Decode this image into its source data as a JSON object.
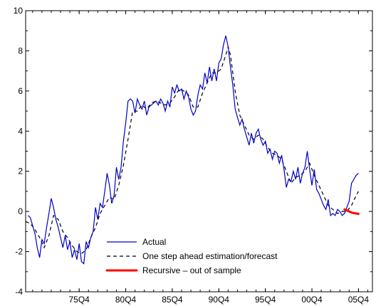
{
  "chart_data": {
    "type": "line",
    "title": "",
    "xlabel": "",
    "ylabel": "",
    "ylim": [
      -4,
      10
    ],
    "xlim": [
      1970.0,
      2007.25
    ],
    "yticks": [
      -4,
      -2,
      0,
      2,
      4,
      6,
      8,
      10
    ],
    "xticks": [
      {
        "label": "75Q4",
        "value": 1975.75
      },
      {
        "label": "80Q4",
        "value": 1980.75
      },
      {
        "label": "85Q4",
        "value": 1985.75
      },
      {
        "label": "90Q4",
        "value": 1990.75
      },
      {
        "label": "95Q4",
        "value": 1995.75
      },
      {
        "label": "00Q4",
        "value": 2000.75
      },
      {
        "label": "05Q4",
        "value": 2005.75
      }
    ],
    "grid": false,
    "legend_position": "bottom-center",
    "series": [
      {
        "name": "Actual",
        "style": "solid",
        "color": "#0000cc",
        "points": [
          [
            1970.25,
            -0.2
          ],
          [
            1970.5,
            -0.3
          ],
          [
            1970.75,
            -0.7
          ],
          [
            1971.0,
            -1.1
          ],
          [
            1971.25,
            -1.8
          ],
          [
            1971.5,
            -2.3
          ],
          [
            1971.75,
            -1.4
          ],
          [
            1972.0,
            -1.6
          ],
          [
            1972.25,
            -0.8
          ],
          [
            1972.5,
            -0.1
          ],
          [
            1972.75,
            0.65
          ],
          [
            1973.0,
            0.2
          ],
          [
            1973.25,
            -0.4
          ],
          [
            1973.5,
            -0.8
          ],
          [
            1973.75,
            -1.3
          ],
          [
            1974.0,
            -1.8
          ],
          [
            1974.25,
            -1.2
          ],
          [
            1974.5,
            -1.9
          ],
          [
            1974.75,
            -1.5
          ],
          [
            1975.0,
            -2.3
          ],
          [
            1975.25,
            -1.9
          ],
          [
            1975.5,
            -2.4
          ],
          [
            1975.75,
            -1.6
          ],
          [
            1976.0,
            -2.5
          ],
          [
            1976.25,
            -2.6
          ],
          [
            1976.5,
            -1.5
          ],
          [
            1976.75,
            -1.8
          ],
          [
            1977.0,
            -1.3
          ],
          [
            1977.25,
            -1.0
          ],
          [
            1977.5,
            0.2
          ],
          [
            1977.75,
            -0.4
          ],
          [
            1978.0,
            0.4
          ],
          [
            1978.25,
            0.2
          ],
          [
            1978.5,
            1.0
          ],
          [
            1978.75,
            1.9
          ],
          [
            1979.0,
            1.3
          ],
          [
            1979.25,
            0.4
          ],
          [
            1979.5,
            0.8
          ],
          [
            1979.75,
            2.2
          ],
          [
            1980.0,
            1.6
          ],
          [
            1980.25,
            2.2
          ],
          [
            1980.5,
            3.5
          ],
          [
            1980.75,
            4.4
          ],
          [
            1981.0,
            5.5
          ],
          [
            1981.25,
            5.6
          ],
          [
            1981.5,
            5.5
          ],
          [
            1981.75,
            4.9
          ],
          [
            1982.0,
            5.6
          ],
          [
            1982.25,
            5.3
          ],
          [
            1982.5,
            5.1
          ],
          [
            1982.75,
            5.5
          ],
          [
            1983.0,
            4.8
          ],
          [
            1983.25,
            5.2
          ],
          [
            1983.5,
            5.3
          ],
          [
            1983.75,
            5.4
          ],
          [
            1984.0,
            5.5
          ],
          [
            1984.25,
            5.3
          ],
          [
            1984.5,
            5.6
          ],
          [
            1984.75,
            5.4
          ],
          [
            1985.0,
            5.0
          ],
          [
            1985.25,
            5.5
          ],
          [
            1985.5,
            5.2
          ],
          [
            1985.75,
            6.2
          ],
          [
            1986.0,
            5.9
          ],
          [
            1986.25,
            6.3
          ],
          [
            1986.5,
            6.0
          ],
          [
            1986.75,
            6.1
          ],
          [
            1987.0,
            5.6
          ],
          [
            1987.25,
            6.0
          ],
          [
            1987.5,
            5.7
          ],
          [
            1987.75,
            5.1
          ],
          [
            1988.0,
            4.8
          ],
          [
            1988.25,
            5.0
          ],
          [
            1988.5,
            5.8
          ],
          [
            1988.75,
            6.3
          ],
          [
            1989.0,
            6.1
          ],
          [
            1989.25,
            6.9
          ],
          [
            1989.5,
            6.4
          ],
          [
            1989.75,
            7.2
          ],
          [
            1990.0,
            6.5
          ],
          [
            1990.25,
            7.1
          ],
          [
            1990.5,
            6.5
          ],
          [
            1990.75,
            7.4
          ],
          [
            1991.0,
            7.6
          ],
          [
            1991.25,
            8.3
          ],
          [
            1991.5,
            8.75
          ],
          [
            1991.75,
            8.2
          ],
          [
            1992.0,
            7.2
          ],
          [
            1992.25,
            6.3
          ],
          [
            1992.5,
            5.1
          ],
          [
            1992.75,
            4.7
          ],
          [
            1993.0,
            4.3
          ],
          [
            1993.25,
            4.6
          ],
          [
            1993.5,
            4.1
          ],
          [
            1993.75,
            3.7
          ],
          [
            1994.0,
            3.3
          ],
          [
            1994.25,
            3.9
          ],
          [
            1994.5,
            3.4
          ],
          [
            1994.75,
            3.9
          ],
          [
            1995.0,
            4.1
          ],
          [
            1995.25,
            3.6
          ],
          [
            1995.5,
            3.3
          ],
          [
            1995.75,
            3.5
          ],
          [
            1996.0,
            2.9
          ],
          [
            1996.25,
            3.1
          ],
          [
            1996.5,
            2.6
          ],
          [
            1996.75,
            3.0
          ],
          [
            1997.0,
            2.9
          ],
          [
            1997.25,
            2.4
          ],
          [
            1997.5,
            2.8
          ],
          [
            1997.75,
            2.1
          ],
          [
            1998.0,
            1.2
          ],
          [
            1998.25,
            1.6
          ],
          [
            1998.5,
            1.5
          ],
          [
            1998.75,
            2.0
          ],
          [
            1999.0,
            1.6
          ],
          [
            1999.25,
            2.2
          ],
          [
            1999.5,
            1.4
          ],
          [
            1999.75,
            1.9
          ],
          [
            2000.0,
            2.2
          ],
          [
            2000.25,
            3.0
          ],
          [
            2000.5,
            2.1
          ],
          [
            2000.75,
            1.3
          ],
          [
            2001.0,
            2.1
          ],
          [
            2001.25,
            1.1
          ],
          [
            2001.5,
            0.9
          ],
          [
            2001.75,
            0.6
          ],
          [
            2002.0,
            0.3
          ],
          [
            2002.25,
            0.1
          ],
          [
            2002.5,
            0.6
          ],
          [
            2002.75,
            -0.2
          ],
          [
            2003.0,
            -0.1
          ],
          [
            2003.25,
            -0.2
          ],
          [
            2003.5,
            0.1
          ],
          [
            2003.75,
            0.0
          ],
          [
            2004.0,
            -0.2
          ],
          [
            2004.25,
            -0.1
          ],
          [
            2004.5,
            0.2
          ],
          [
            2004.75,
            0.5
          ],
          [
            2005.0,
            1.4
          ],
          [
            2005.25,
            1.6
          ],
          [
            2005.5,
            1.8
          ],
          [
            2005.75,
            1.9
          ]
        ]
      },
      {
        "name": "One step ahead estimation/forecast",
        "style": "dashed",
        "color": "#000000",
        "points": [
          [
            1970.0,
            -0.5
          ],
          [
            1970.5,
            -0.6
          ],
          [
            1971.0,
            -0.9
          ],
          [
            1971.5,
            -1.3
          ],
          [
            1972.0,
            -1.8
          ],
          [
            1972.5,
            -1.2
          ],
          [
            1973.0,
            -0.2
          ],
          [
            1973.5,
            -0.4
          ],
          [
            1974.0,
            -1.0
          ],
          [
            1974.5,
            -1.3
          ],
          [
            1975.0,
            -1.7
          ],
          [
            1975.5,
            -2.0
          ],
          [
            1976.0,
            -2.1
          ],
          [
            1976.5,
            -1.9
          ],
          [
            1977.0,
            -1.3
          ],
          [
            1977.5,
            -0.8
          ],
          [
            1978.0,
            -0.1
          ],
          [
            1978.5,
            0.3
          ],
          [
            1979.0,
            0.7
          ],
          [
            1979.5,
            0.6
          ],
          [
            1980.0,
            1.3
          ],
          [
            1980.5,
            2.3
          ],
          [
            1981.0,
            3.6
          ],
          [
            1981.5,
            5.0
          ],
          [
            1982.0,
            5.0
          ],
          [
            1982.5,
            5.3
          ],
          [
            1983.0,
            5.1
          ],
          [
            1983.5,
            5.4
          ],
          [
            1984.0,
            5.5
          ],
          [
            1984.5,
            5.4
          ],
          [
            1985.0,
            5.3
          ],
          [
            1985.5,
            5.4
          ],
          [
            1986.0,
            5.7
          ],
          [
            1986.5,
            6.1
          ],
          [
            1987.0,
            6.0
          ],
          [
            1987.5,
            5.8
          ],
          [
            1988.0,
            5.2
          ],
          [
            1988.5,
            5.2
          ],
          [
            1989.0,
            5.9
          ],
          [
            1989.5,
            6.4
          ],
          [
            1990.0,
            6.9
          ],
          [
            1990.5,
            6.9
          ],
          [
            1991.0,
            7.1
          ],
          [
            1991.5,
            7.8
          ],
          [
            1991.75,
            8.2
          ],
          [
            1992.0,
            7.8
          ],
          [
            1992.5,
            6.0
          ],
          [
            1993.0,
            4.8
          ],
          [
            1993.5,
            4.3
          ],
          [
            1994.0,
            3.8
          ],
          [
            1994.5,
            3.6
          ],
          [
            1995.0,
            3.8
          ],
          [
            1995.5,
            3.6
          ],
          [
            1996.0,
            3.2
          ],
          [
            1996.5,
            2.9
          ],
          [
            1997.0,
            2.8
          ],
          [
            1997.5,
            2.6
          ],
          [
            1998.0,
            2.0
          ],
          [
            1998.5,
            1.4
          ],
          [
            1999.0,
            1.7
          ],
          [
            1999.5,
            1.8
          ],
          [
            2000.0,
            2.0
          ],
          [
            2000.5,
            2.4
          ],
          [
            2001.0,
            1.8
          ],
          [
            2001.5,
            1.3
          ],
          [
            2002.0,
            0.8
          ],
          [
            2002.5,
            0.3
          ],
          [
            2003.0,
            0.1
          ],
          [
            2003.5,
            -0.1
          ],
          [
            2004.0,
            0.0
          ],
          [
            2004.5,
            0.0
          ],
          [
            2005.0,
            0.3
          ],
          [
            2005.5,
            0.8
          ],
          [
            2005.75,
            1.0
          ]
        ]
      },
      {
        "name": "Recursive – out of sample",
        "style": "solid-thick",
        "color": "#ff0000",
        "points": [
          [
            2004.25,
            0.1
          ],
          [
            2004.5,
            0.05
          ],
          [
            2004.75,
            0.0
          ],
          [
            2005.0,
            -0.05
          ],
          [
            2005.25,
            -0.08
          ],
          [
            2005.5,
            -0.1
          ],
          [
            2005.75,
            -0.12
          ]
        ]
      }
    ]
  }
}
